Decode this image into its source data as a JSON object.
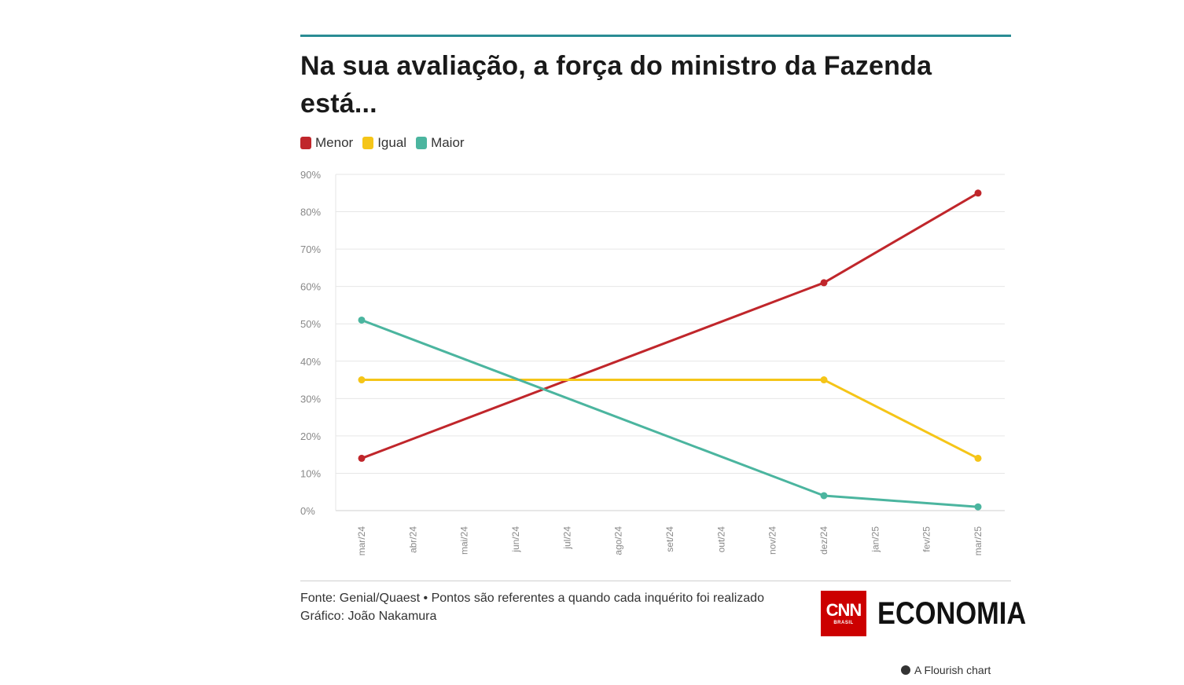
{
  "title": "Na sua avaliação, a força do ministro da Fazenda está...",
  "legend": [
    {
      "label": "Menor",
      "color": "#c0262b"
    },
    {
      "label": "Igual",
      "color": "#f5c518"
    },
    {
      "label": "Maior",
      "color": "#4bb59f"
    }
  ],
  "chart_data": {
    "type": "line",
    "title": "Na sua avaliação, a força do ministro da Fazenda está...",
    "xlabel": "",
    "ylabel": "",
    "ylim": [
      0,
      90
    ],
    "yticks": [
      "0%",
      "10%",
      "20%",
      "30%",
      "40%",
      "50%",
      "60%",
      "70%",
      "80%",
      "90%"
    ],
    "categories": [
      "mar/24",
      "abr/24",
      "mai/24",
      "jun/24",
      "jul/24",
      "ago/24",
      "set/24",
      "out/24",
      "nov/24",
      "dez/24",
      "jan/25",
      "fev/25",
      "mar/25"
    ],
    "series": [
      {
        "name": "Menor",
        "color": "#c0262b",
        "points": [
          {
            "x": "mar/24",
            "y": 14
          },
          {
            "x": "dez/24",
            "y": 61
          },
          {
            "x": "mar/25",
            "y": 85
          }
        ]
      },
      {
        "name": "Igual",
        "color": "#f5c518",
        "points": [
          {
            "x": "mar/24",
            "y": 35
          },
          {
            "x": "dez/24",
            "y": 35
          },
          {
            "x": "mar/25",
            "y": 14
          }
        ]
      },
      {
        "name": "Maior",
        "color": "#4bb59f",
        "points": [
          {
            "x": "mar/24",
            "y": 51
          },
          {
            "x": "dez/24",
            "y": 4
          },
          {
            "x": "mar/25",
            "y": 1
          }
        ]
      }
    ],
    "grid": true,
    "legend_position": "top-left"
  },
  "source": {
    "line1": "Fonte: Genial/Quaest • Pontos são referentes a quando cada inquérito foi realizado",
    "line2": "Gráfico: João Nakamura"
  },
  "brand": {
    "cnn": "CNN",
    "cnn_sub": "BRASIL",
    "economia": "ECONOMIA"
  },
  "credit": "A Flourish chart"
}
